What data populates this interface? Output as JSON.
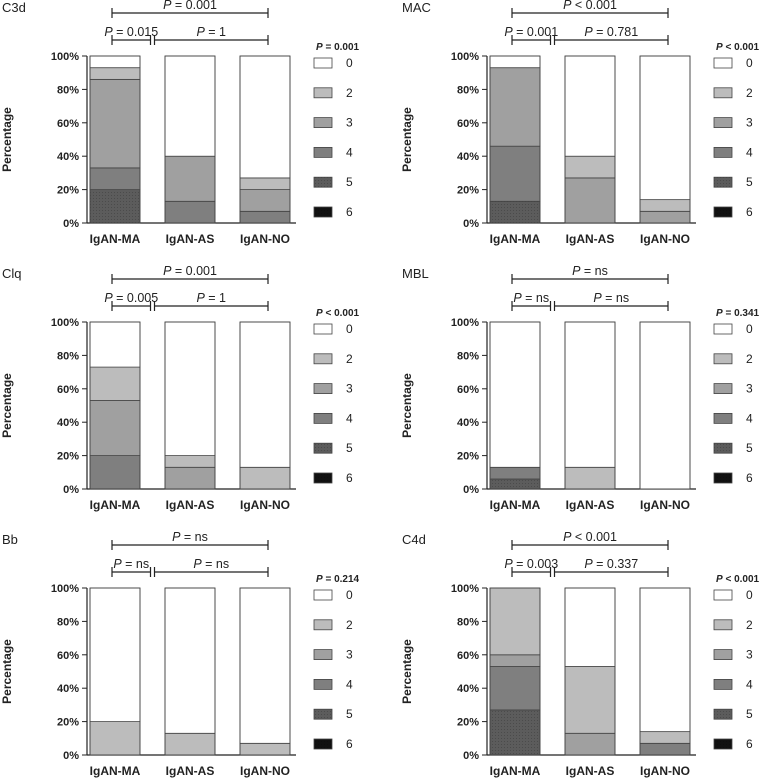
{
  "legend_levels": [
    "0",
    "2",
    "3",
    "4",
    "5",
    "6"
  ],
  "level_colors": {
    "0": "#ffffff",
    "2": "#bcbcbc",
    "3": "#a0a0a0",
    "4": "#7f7f7f",
    "5": "#5c5c5c",
    "6": "#111111"
  },
  "chart_data": [
    {
      "type": "bar",
      "stacked": true,
      "title": "C3d",
      "ylabel": "Percentage",
      "ylim": [
        0,
        100
      ],
      "y_ticks": [
        "0%",
        "20%",
        "40%",
        "60%",
        "80%",
        "100%"
      ],
      "categories": [
        "IgAN-MA",
        "IgAN-AS",
        "IgAN-NO"
      ],
      "series": [
        {
          "name": "6",
          "values": [
            0,
            0,
            0
          ]
        },
        {
          "name": "5",
          "values": [
            20,
            0,
            0
          ]
        },
        {
          "name": "4",
          "values": [
            13,
            13,
            7
          ]
        },
        {
          "name": "3",
          "values": [
            53,
            27,
            13
          ]
        },
        {
          "name": "2",
          "values": [
            7,
            0,
            7
          ]
        },
        {
          "name": "0",
          "values": [
            7,
            60,
            73
          ]
        }
      ],
      "overall_p": "P = 0.001",
      "comparisons": {
        "ma_as": "0.015",
        "as_no": "1",
        "ma_no": "0.001",
        "prefix": "P",
        "op": "="
      }
    },
    {
      "type": "bar",
      "stacked": true,
      "title": "MAC",
      "ylabel": "Percentage",
      "ylim": [
        0,
        100
      ],
      "y_ticks": [
        "0%",
        "20%",
        "40%",
        "60%",
        "80%",
        "100%"
      ],
      "categories": [
        "IgAN-MA",
        "IgAN-AS",
        "IgAN-NO"
      ],
      "series": [
        {
          "name": "6",
          "values": [
            0,
            0,
            0
          ]
        },
        {
          "name": "5",
          "values": [
            13,
            0,
            0
          ]
        },
        {
          "name": "4",
          "values": [
            33,
            0,
            0
          ]
        },
        {
          "name": "3",
          "values": [
            47,
            27,
            7
          ]
        },
        {
          "name": "2",
          "values": [
            0,
            13,
            7
          ]
        },
        {
          "name": "0",
          "values": [
            7,
            60,
            86
          ]
        }
      ],
      "overall_p": "P < 0.001",
      "comparisons": {
        "ma_as": "0.001",
        "as_no": "0.781",
        "ma_no": "0.001",
        "prefix": "P",
        "op_ma_as": "=",
        "op_as_no": "=",
        "op_ma_no": "<"
      }
    },
    {
      "type": "bar",
      "stacked": true,
      "title": "Clq",
      "ylabel": "Percentage",
      "ylim": [
        0,
        100
      ],
      "y_ticks": [
        "0%",
        "20%",
        "40%",
        "60%",
        "80%",
        "100%"
      ],
      "categories": [
        "IgAN-MA",
        "IgAN-AS",
        "IgAN-NO"
      ],
      "series": [
        {
          "name": "6",
          "values": [
            0,
            0,
            0
          ]
        },
        {
          "name": "5",
          "values": [
            0,
            0,
            0
          ]
        },
        {
          "name": "4",
          "values": [
            20,
            0,
            0
          ]
        },
        {
          "name": "3",
          "values": [
            33,
            13,
            0
          ]
        },
        {
          "name": "2",
          "values": [
            20,
            7,
            13
          ]
        },
        {
          "name": "0",
          "values": [
            27,
            80,
            87
          ]
        }
      ],
      "overall_p": "P < 0.001",
      "comparisons": {
        "ma_as": "0.005",
        "as_no": "1",
        "ma_no": "0.001",
        "prefix": "P",
        "op": "="
      }
    },
    {
      "type": "bar",
      "stacked": true,
      "title": "MBL",
      "ylabel": "Percentage",
      "ylim": [
        0,
        100
      ],
      "y_ticks": [
        "0%",
        "20%",
        "40%",
        "60%",
        "80%",
        "100%"
      ],
      "categories": [
        "IgAN-MA",
        "IgAN-AS",
        "IgAN-NO"
      ],
      "series": [
        {
          "name": "6",
          "values": [
            0,
            0,
            0
          ]
        },
        {
          "name": "5",
          "values": [
            6,
            0,
            0
          ]
        },
        {
          "name": "4",
          "values": [
            7,
            0,
            0
          ]
        },
        {
          "name": "3",
          "values": [
            0,
            0,
            0
          ]
        },
        {
          "name": "2",
          "values": [
            0,
            13,
            0
          ]
        },
        {
          "name": "0",
          "values": [
            87,
            87,
            100
          ]
        }
      ],
      "overall_p": "P = 0.341",
      "comparisons": {
        "ma_as": "ns",
        "as_no": "ns",
        "ma_no": "ns",
        "prefix": "P",
        "op": "="
      }
    },
    {
      "type": "bar",
      "stacked": true,
      "title": "Bb",
      "ylabel": "Percentage",
      "ylim": [
        0,
        100
      ],
      "y_ticks": [
        "0%",
        "20%",
        "40%",
        "60%",
        "80%",
        "100%"
      ],
      "categories": [
        "IgAN-MA",
        "IgAN-AS",
        "IgAN-NO"
      ],
      "series": [
        {
          "name": "6",
          "values": [
            0,
            0,
            0
          ]
        },
        {
          "name": "5",
          "values": [
            0,
            0,
            0
          ]
        },
        {
          "name": "4",
          "values": [
            0,
            0,
            0
          ]
        },
        {
          "name": "3",
          "values": [
            0,
            0,
            0
          ]
        },
        {
          "name": "2",
          "values": [
            20,
            13,
            7
          ]
        },
        {
          "name": "0",
          "values": [
            80,
            87,
            93
          ]
        }
      ],
      "overall_p": "P = 0.214",
      "comparisons": {
        "ma_as": "ns",
        "as_no": "ns",
        "ma_no": "ns",
        "prefix": "P",
        "op": "="
      }
    },
    {
      "type": "bar",
      "stacked": true,
      "title": "C4d",
      "ylabel": "Percentage",
      "ylim": [
        0,
        100
      ],
      "y_ticks": [
        "0%",
        "20%",
        "40%",
        "60%",
        "80%",
        "100%"
      ],
      "categories": [
        "IgAN-MA",
        "IgAN-AS",
        "IgAN-NO"
      ],
      "series": [
        {
          "name": "6",
          "values": [
            0,
            0,
            0
          ]
        },
        {
          "name": "5",
          "values": [
            27,
            0,
            0
          ]
        },
        {
          "name": "4",
          "values": [
            26,
            0,
            7
          ]
        },
        {
          "name": "3",
          "values": [
            7,
            13,
            0
          ]
        },
        {
          "name": "2",
          "values": [
            40,
            40,
            7
          ]
        },
        {
          "name": "0",
          "values": [
            0,
            47,
            86
          ]
        }
      ],
      "overall_p": "P < 0.001",
      "comparisons": {
        "ma_as": "0.003",
        "as_no": "0.337",
        "ma_no": "0.001",
        "prefix": "P",
        "op_ma_as": "=",
        "op_as_no": "=",
        "op_ma_no": "<"
      }
    }
  ]
}
